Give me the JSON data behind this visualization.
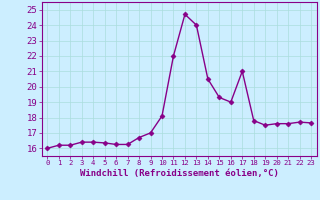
{
  "x": [
    0,
    1,
    2,
    3,
    4,
    5,
    6,
    7,
    8,
    9,
    10,
    11,
    12,
    13,
    14,
    15,
    16,
    17,
    18,
    19,
    20,
    21,
    22,
    23
  ],
  "y": [
    16.0,
    16.2,
    16.2,
    16.4,
    16.4,
    16.35,
    16.25,
    16.25,
    16.7,
    17.0,
    18.1,
    22.0,
    24.7,
    24.0,
    20.5,
    19.3,
    19.0,
    21.0,
    17.8,
    17.5,
    17.6,
    17.6,
    17.7,
    17.65
  ],
  "line_color": "#880088",
  "marker": "D",
  "marker_size": 2.5,
  "bg_color": "#cceeff",
  "grid_color": "#aadddd",
  "xlabel": "Windchill (Refroidissement éolien,°C)",
  "ylim": [
    15.5,
    25.5
  ],
  "xlim": [
    -0.5,
    23.5
  ],
  "yticks": [
    16,
    17,
    18,
    19,
    20,
    21,
    22,
    23,
    24,
    25
  ],
  "xticks": [
    0,
    1,
    2,
    3,
    4,
    5,
    6,
    7,
    8,
    9,
    10,
    11,
    12,
    13,
    14,
    15,
    16,
    17,
    18,
    19,
    20,
    21,
    22,
    23
  ],
  "tick_color": "#880088",
  "label_color": "#880088",
  "axis_color": "#880088",
  "font_size": 6.5,
  "xlabel_fontsize": 6.5
}
